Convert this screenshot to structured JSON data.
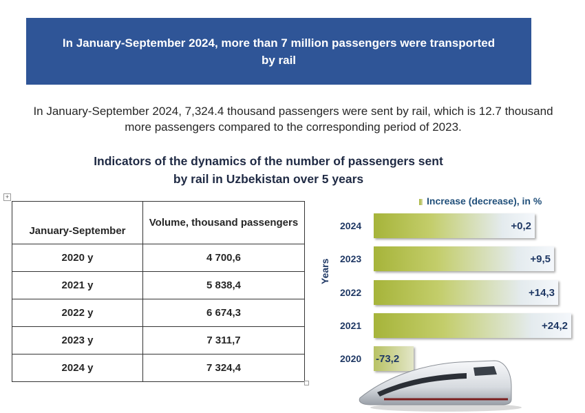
{
  "header": {
    "title": "In January-September 2024, more than 7 million passengers were transported by rail"
  },
  "summary": "In January-September 2024, 7,324.4 thousand passengers were sent by rail, which is 12.7 thousand more passengers compared to the corresponding period of 2023.",
  "subtitle_line1": "Indicators of the dynamics of the number of passengers sent",
  "subtitle_line2": "by rail in Uzbekistan over 5 years",
  "table": {
    "move_handle": "+",
    "headers": [
      "January-September",
      "Volume, thousand passengers"
    ],
    "rows": [
      {
        "period": "2020 y",
        "volume": "4 700,6"
      },
      {
        "period": "2021 y",
        "volume": "5 838,4"
      },
      {
        "period": "2022 y",
        "volume": "6 674,3"
      },
      {
        "period": "2023 y",
        "volume": "7 311,7"
      },
      {
        "period": "2024 y",
        "volume": "7 324,4"
      }
    ]
  },
  "chart_data": {
    "type": "bar",
    "orientation": "horizontal",
    "legend": "Increase (decrease), in %",
    "ylabel": "Years",
    "categories": [
      "2024",
      "2023",
      "2022",
      "2021",
      "2020"
    ],
    "values": [
      0.2,
      9.5,
      14.3,
      24.2,
      -73.2
    ],
    "labels": [
      "+0,2",
      "+9,5",
      "+14,3",
      "+24,2",
      "-73,2"
    ],
    "colors": {
      "bar_start": "#a6b43a",
      "bar_end": "#f4f7fb"
    }
  }
}
